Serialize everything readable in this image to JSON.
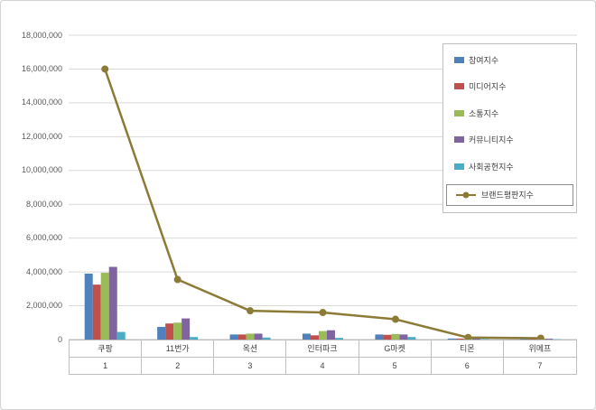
{
  "chart_data": {
    "type": "bar",
    "title": "",
    "xlabel": "",
    "ylabel": "",
    "ylim": [
      0,
      18000000
    ],
    "ytick_step": 2000000,
    "yticklabels": [
      "0",
      "2,000,000",
      "4,000,000",
      "6,000,000",
      "8,000,000",
      "10,000,000",
      "12,000,000",
      "14,000,000",
      "16,000,000",
      "18,000,000"
    ],
    "grid": true,
    "legend_position": "right-top",
    "legend_boxed_item": "브랜드평판지수",
    "categories": [
      "쿠팡",
      "11번가",
      "옥션",
      "인터파크",
      "G마켓",
      "티몬",
      "위메프"
    ],
    "category_ranks": [
      "1",
      "2",
      "3",
      "4",
      "5",
      "6",
      "7"
    ],
    "series": [
      {
        "name": "참여지수",
        "kind": "bar",
        "color": "#4F81BD",
        "values": [
          3900000,
          750000,
          300000,
          350000,
          300000,
          60000,
          50000
        ]
      },
      {
        "name": "미디어지수",
        "kind": "bar",
        "color": "#C0504D",
        "values": [
          3250000,
          950000,
          300000,
          250000,
          280000,
          60000,
          50000
        ]
      },
      {
        "name": "소통지수",
        "kind": "bar",
        "color": "#9BBB59",
        "values": [
          3950000,
          1000000,
          350000,
          500000,
          330000,
          70000,
          60000
        ]
      },
      {
        "name": "커뮤니티지수",
        "kind": "bar",
        "color": "#8064A2",
        "values": [
          4300000,
          1250000,
          350000,
          550000,
          300000,
          70000,
          50000
        ]
      },
      {
        "name": "사회공헌지수",
        "kind": "bar",
        "color": "#4BACC6",
        "values": [
          450000,
          150000,
          120000,
          100000,
          150000,
          30000,
          20000
        ]
      },
      {
        "name": "브랜드평판지수",
        "kind": "line",
        "color": "#8C7B37",
        "values": [
          16000000,
          3550000,
          1700000,
          1600000,
          1200000,
          120000,
          80000
        ]
      }
    ],
    "colors": {
      "gridline": "#D9D9D9",
      "axis_line": "#BFBFBF",
      "tick_label": "#595959",
      "category_label": "#404040"
    }
  }
}
